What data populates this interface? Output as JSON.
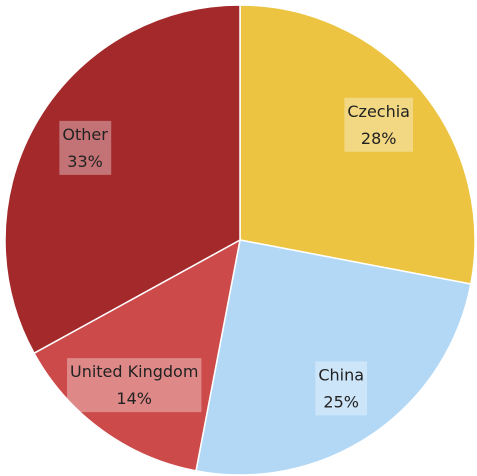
{
  "chart_data": {
    "type": "pie",
    "categories": [
      "Czechia",
      "China",
      "United Kingdom",
      "Other"
    ],
    "values": [
      28,
      25,
      14,
      33
    ],
    "value_labels": [
      "28%",
      "25%",
      "14%",
      "33%"
    ],
    "colors": [
      "#ecc441",
      "#b2d8f6",
      "#cc4a49",
      "#a3292b"
    ]
  }
}
